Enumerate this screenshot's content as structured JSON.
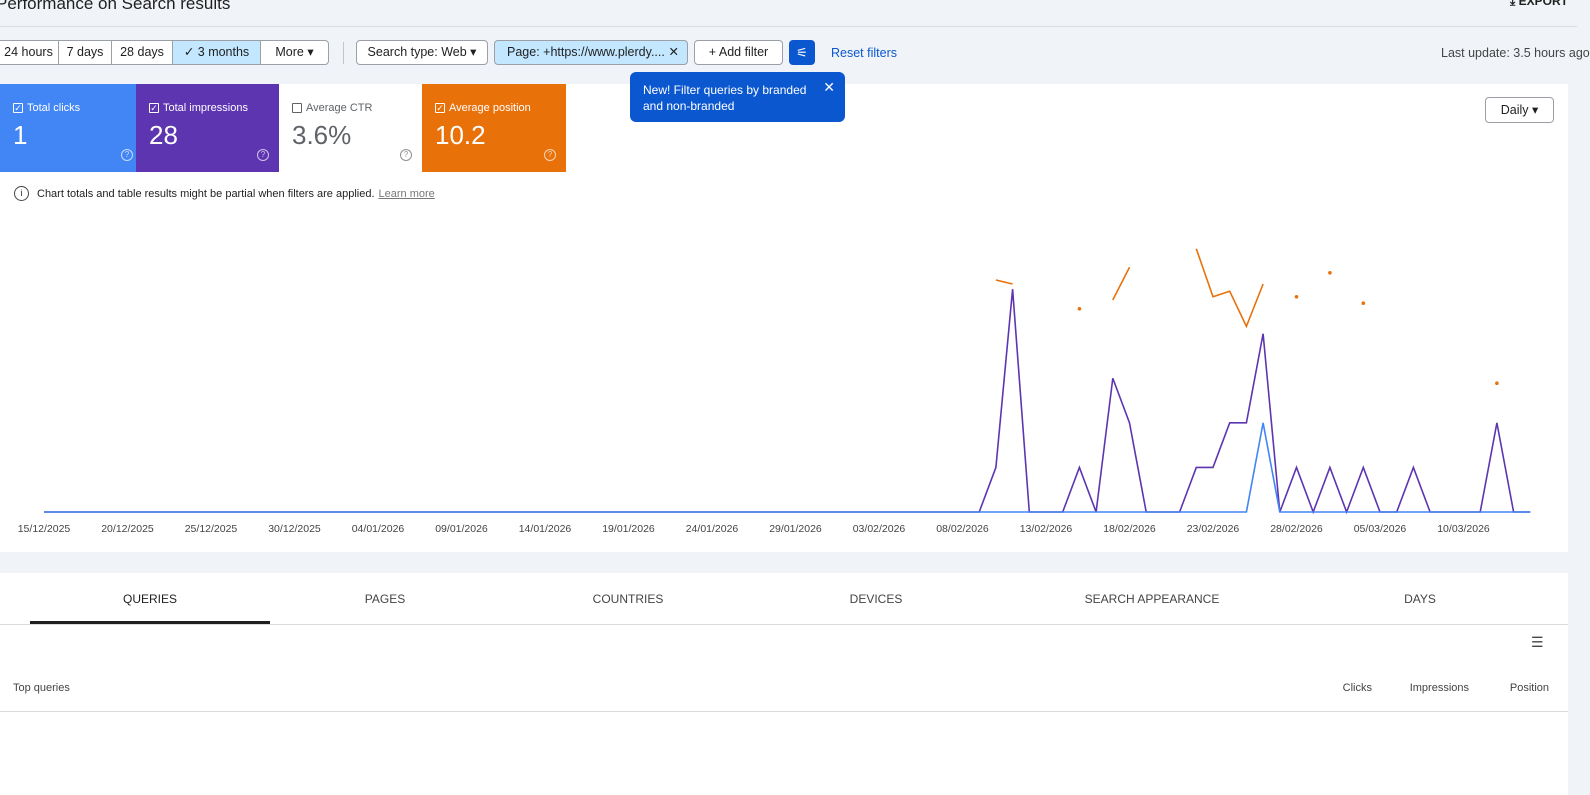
{
  "header": {
    "title": "Performance on Search results",
    "export": "EXPORT"
  },
  "filters": {
    "ranges": [
      "24 hours",
      "7 days",
      "28 days",
      "3 months",
      "More"
    ],
    "selected_range": 3,
    "search_type": "Search type: Web",
    "page_filter": "Page: +https://www.plerdy....",
    "add_filter": "Add filter",
    "reset": "Reset filters",
    "last_update": "Last update: 3.5 hours ago"
  },
  "tooltip": {
    "text": "New! Filter queries by branded and non-branded"
  },
  "ctr_card": {
    "label": "Average CTR",
    "value": "3.6%",
    "checked": false
  },
  "granularity": "Daily",
  "notice": {
    "text": "Chart totals and table results might be partial when filters are applied.",
    "link": "Learn more"
  },
  "chart_data": {
    "type": "line",
    "grid": false,
    "categories": [
      "15/12/2025",
      null,
      null,
      null,
      null,
      "20/12/2025",
      null,
      null,
      null,
      null,
      "25/12/2025",
      null,
      null,
      null,
      null,
      "30/12/2025",
      null,
      null,
      null,
      null,
      "04/01/2026",
      null,
      null,
      null,
      null,
      "09/01/2026",
      null,
      null,
      null,
      null,
      "14/01/2026",
      null,
      null,
      null,
      null,
      "19/01/2026",
      null,
      null,
      null,
      null,
      "24/01/2026",
      null,
      null,
      null,
      null,
      "29/01/2026",
      null,
      null,
      null,
      null,
      "03/02/2026",
      null,
      null,
      null,
      null,
      "08/02/2026",
      null,
      null,
      null,
      null,
      "13/02/2026",
      null,
      null,
      null,
      null,
      "18/02/2026",
      null,
      null,
      null,
      null,
      "23/02/2026",
      null,
      null,
      null,
      null,
      "28/02/2026",
      null,
      null,
      null,
      null,
      "05/03/2026",
      null,
      null,
      null,
      null,
      "10/03/2026",
      null,
      null,
      null,
      null
    ],
    "series": [
      {
        "name": "Total clicks",
        "total": "1",
        "checked": true,
        "color": "#4285f4",
        "ylim": [
          0,
          3.5
        ],
        "values": [
          0,
          0,
          0,
          0,
          0,
          0,
          0,
          0,
          0,
          0,
          0,
          0,
          0,
          0,
          0,
          0,
          0,
          0,
          0,
          0,
          0,
          0,
          0,
          0,
          0,
          0,
          0,
          0,
          0,
          0,
          0,
          0,
          0,
          0,
          0,
          0,
          0,
          0,
          0,
          0,
          0,
          0,
          0,
          0,
          0,
          0,
          0,
          0,
          0,
          0,
          0,
          0,
          0,
          0,
          0,
          0,
          0,
          0,
          0,
          0,
          0,
          0,
          0,
          0,
          0,
          0,
          0,
          0,
          0,
          0,
          0,
          0,
          0,
          1,
          0,
          0,
          0,
          0,
          0,
          0,
          0,
          0,
          0,
          0,
          0,
          0,
          0,
          0,
          0,
          0
        ]
      },
      {
        "name": "Total impressions",
        "total": "28",
        "checked": true,
        "color": "#5e35b1",
        "ylim": [
          0,
          7
        ],
        "values": [
          0,
          0,
          0,
          0,
          0,
          0,
          0,
          0,
          0,
          0,
          0,
          0,
          0,
          0,
          0,
          0,
          0,
          0,
          0,
          0,
          0,
          0,
          0,
          0,
          0,
          0,
          0,
          0,
          0,
          0,
          0,
          0,
          0,
          0,
          0,
          0,
          0,
          0,
          0,
          0,
          0,
          0,
          0,
          0,
          0,
          0,
          0,
          0,
          0,
          0,
          0,
          0,
          0,
          0,
          0,
          0,
          0,
          1,
          5,
          0,
          0,
          0,
          1,
          0,
          3,
          2,
          0,
          0,
          0,
          1,
          1,
          2,
          2,
          4,
          0,
          1,
          0,
          1,
          0,
          1,
          0,
          0,
          1,
          0,
          0,
          0,
          0,
          2,
          0,
          0
        ]
      },
      {
        "name": "Average position",
        "total": "10.2",
        "checked": true,
        "color": "#e8710a",
        "ylim": [
          36.5,
          -2.5
        ],
        "values": [
          null,
          null,
          null,
          null,
          null,
          null,
          null,
          null,
          null,
          null,
          null,
          null,
          null,
          null,
          null,
          null,
          null,
          null,
          null,
          null,
          null,
          null,
          null,
          null,
          null,
          null,
          null,
          null,
          null,
          null,
          null,
          null,
          null,
          null,
          null,
          null,
          null,
          null,
          null,
          null,
          null,
          null,
          null,
          null,
          null,
          null,
          null,
          null,
          null,
          null,
          null,
          null,
          null,
          null,
          null,
          null,
          null,
          7.5,
          8,
          null,
          null,
          null,
          11.1,
          null,
          10,
          5.9,
          null,
          null,
          null,
          3.6,
          9.6,
          8.9,
          13.3,
          8,
          null,
          9.6,
          null,
          6.6,
          null,
          10.4,
          null,
          null,
          null,
          null,
          null,
          null,
          null,
          20.4,
          null,
          null
        ]
      }
    ]
  },
  "tabs": [
    "QUERIES",
    "PAGES",
    "COUNTRIES",
    "DEVICES",
    "SEARCH APPEARANCE",
    "DAYS"
  ],
  "active_tab": 0,
  "table": {
    "columns": [
      "Top queries",
      "Clicks",
      "Impressions",
      "Position"
    ]
  }
}
